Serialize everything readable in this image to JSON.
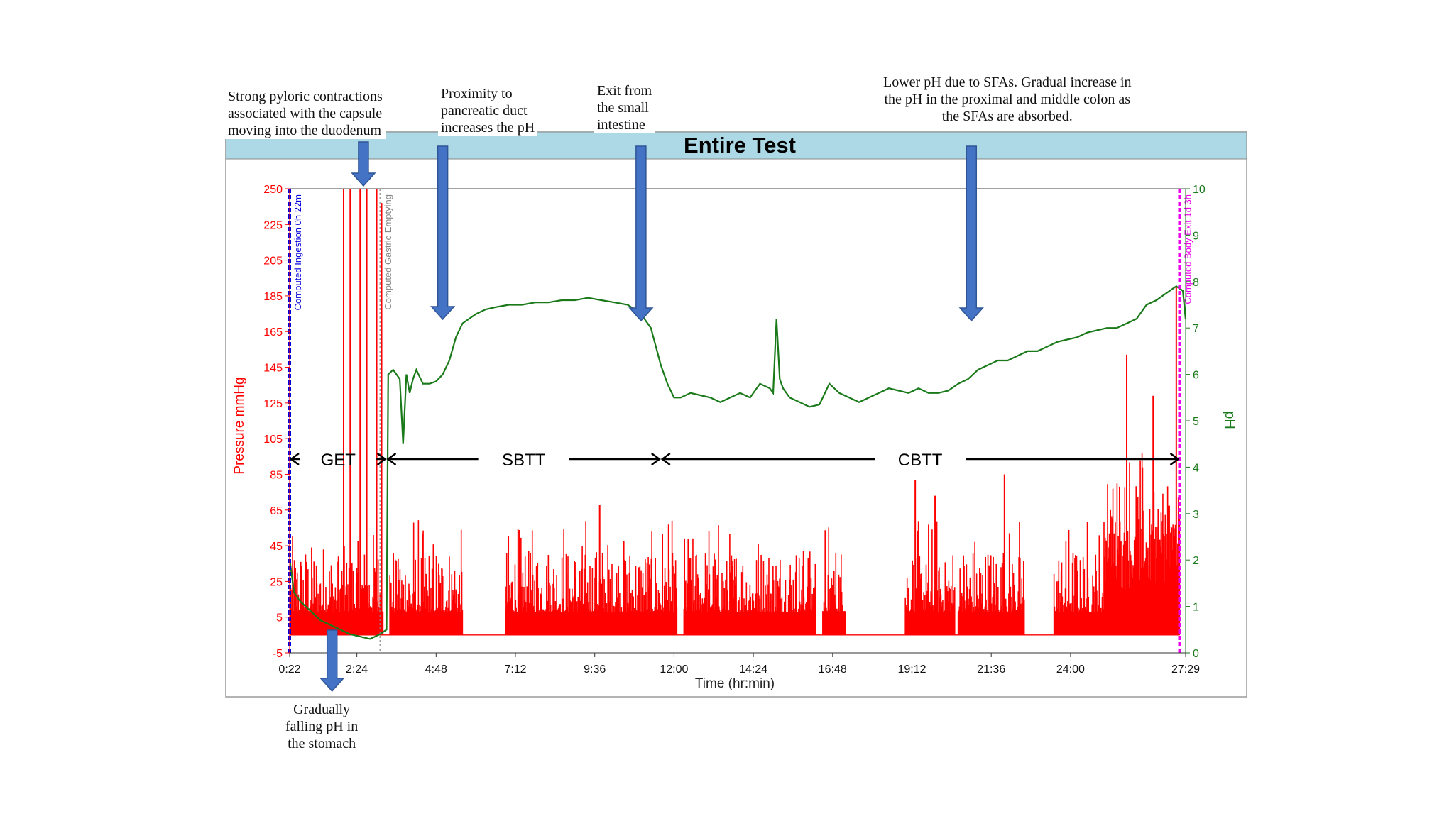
{
  "chart_data": {
    "type": "line",
    "title": "Entire Test",
    "xlabel": "Time (hr:min)",
    "ylabel_left": "Pressure mmHg",
    "ylabel_right": "pH",
    "x_ticks": [
      "0:22",
      "2:24",
      "4:48",
      "7:12",
      "9:36",
      "12:00",
      "14:24",
      "16:48",
      "19:12",
      "21:36",
      "24:00",
      "27:29"
    ],
    "x_tick_hours": [
      0.367,
      2.4,
      4.8,
      7.2,
      9.6,
      12.0,
      14.4,
      16.8,
      19.2,
      21.6,
      24.0,
      27.483
    ],
    "xlim_hours": [
      0.367,
      27.483
    ],
    "left_axis": {
      "ticks": [
        250,
        225,
        205,
        185,
        165,
        145,
        125,
        105,
        85,
        65,
        45,
        25,
        5,
        -5
      ],
      "tick_positions": [
        250,
        225,
        205,
        185,
        165,
        145,
        125,
        105,
        85,
        65,
        45,
        25,
        5,
        -5
      ],
      "ylim": [
        -5,
        250
      ]
    },
    "right_axis": {
      "ticks": [
        0,
        1,
        2,
        3,
        4,
        5,
        6,
        7,
        8,
        9,
        10
      ],
      "ylim": [
        0,
        10
      ]
    },
    "series": [
      {
        "name": "pH",
        "color": "#1a7a1a",
        "axis": "right",
        "x_hours": [
          0.37,
          0.5,
          0.7,
          1.0,
          1.3,
          1.6,
          1.9,
          2.2,
          2.5,
          2.8,
          3.1,
          3.3,
          3.35,
          3.5,
          3.7,
          3.8,
          3.9,
          4.0,
          4.1,
          4.2,
          4.4,
          4.6,
          4.8,
          5.0,
          5.2,
          5.4,
          5.6,
          5.8,
          6.0,
          6.3,
          6.6,
          7.0,
          7.4,
          7.8,
          8.2,
          8.6,
          9.0,
          9.4,
          9.8,
          10.2,
          10.6,
          11.0,
          11.3,
          11.6,
          11.8,
          12.0,
          12.2,
          12.5,
          12.8,
          13.1,
          13.4,
          13.7,
          14.0,
          14.3,
          14.6,
          14.9,
          15.0,
          15.1,
          15.2,
          15.3,
          15.5,
          15.8,
          16.1,
          16.4,
          16.7,
          17.0,
          17.3,
          17.6,
          17.9,
          18.2,
          18.5,
          18.8,
          19.1,
          19.4,
          19.7,
          20.0,
          20.3,
          20.6,
          20.9,
          21.2,
          21.5,
          21.8,
          22.1,
          22.4,
          22.7,
          23.0,
          23.3,
          23.6,
          23.9,
          24.2,
          24.5,
          24.8,
          25.1,
          25.4,
          25.7,
          26.0,
          26.3,
          26.6,
          26.8,
          27.0,
          27.2,
          27.4,
          27.48
        ],
        "values": [
          2.0,
          1.3,
          1.1,
          0.9,
          0.7,
          0.6,
          0.5,
          0.4,
          0.35,
          0.3,
          0.4,
          0.5,
          6.0,
          6.1,
          5.9,
          4.5,
          6.0,
          5.6,
          5.9,
          6.1,
          5.8,
          5.8,
          5.85,
          6.0,
          6.3,
          6.8,
          7.1,
          7.2,
          7.3,
          7.4,
          7.45,
          7.5,
          7.5,
          7.55,
          7.55,
          7.6,
          7.6,
          7.65,
          7.6,
          7.55,
          7.5,
          7.3,
          7.0,
          6.2,
          5.8,
          5.5,
          5.5,
          5.6,
          5.55,
          5.5,
          5.4,
          5.5,
          5.6,
          5.5,
          5.8,
          5.7,
          5.6,
          7.2,
          5.9,
          5.7,
          5.5,
          5.4,
          5.3,
          5.35,
          5.8,
          5.6,
          5.5,
          5.4,
          5.5,
          5.6,
          5.7,
          5.65,
          5.6,
          5.7,
          5.6,
          5.6,
          5.65,
          5.8,
          5.9,
          6.1,
          6.2,
          6.3,
          6.3,
          6.4,
          6.5,
          6.5,
          6.6,
          6.7,
          6.75,
          6.8,
          6.9,
          6.95,
          7.0,
          7.0,
          7.1,
          7.2,
          7.5,
          7.6,
          7.7,
          7.8,
          7.9,
          7.8,
          7.2
        ]
      },
      {
        "name": "Pressure",
        "color": "#ff0000",
        "axis": "left",
        "note": "dense spike train; envelope estimated from image",
        "spike_bursts_hours": [
          [
            0.4,
            3.2
          ],
          [
            3.4,
            5.6
          ],
          [
            6.9,
            12.1
          ],
          [
            12.3,
            14.6
          ],
          [
            14.6,
            16.3
          ],
          [
            16.5,
            17.2
          ],
          [
            19.0,
            20.5
          ],
          [
            20.6,
            22.6
          ],
          [
            23.5,
            27.3
          ]
        ],
        "tall_spikes": [
          {
            "x_hour": 2.0,
            "value": 250
          },
          {
            "x_hour": 2.2,
            "value": 250
          },
          {
            "x_hour": 2.5,
            "value": 250
          },
          {
            "x_hour": 2.7,
            "value": 250
          },
          {
            "x_hour": 3.0,
            "value": 250
          },
          {
            "x_hour": 3.15,
            "value": 240
          },
          {
            "x_hour": 9.75,
            "value": 68
          },
          {
            "x_hour": 19.3,
            "value": 82
          },
          {
            "x_hour": 19.9,
            "value": 73
          },
          {
            "x_hour": 22.0,
            "value": 85
          },
          {
            "x_hour": 25.7,
            "value": 152
          },
          {
            "x_hour": 26.5,
            "value": 129
          },
          {
            "x_hour": 27.2,
            "value": 190
          }
        ]
      }
    ],
    "vertical_markers": [
      {
        "label": "Computed Ingestion 0h 22m",
        "x_hour": 0.367,
        "color": "#0000dd"
      },
      {
        "label": "Computed Gastric Emptying",
        "x_hour": 3.1,
        "color": "#888888"
      },
      {
        "label": "Computed Body Exit 1d 3h",
        "x_hour": 27.3,
        "color": "#ee00ee"
      }
    ],
    "phase_spans": [
      {
        "label": "GET",
        "from_hour": 0.367,
        "to_hour": 3.3
      },
      {
        "label": "SBTT",
        "from_hour": 3.3,
        "to_hour": 11.6
      },
      {
        "label": "CBTT",
        "from_hour": 11.6,
        "to_hour": 27.3
      }
    ]
  },
  "annotations": [
    {
      "id": "pyloric",
      "text": "Strong pyloric contractions\nassociated with the capsule\nmoving into the duodenum",
      "points_to_hour": 2.6
    },
    {
      "id": "pancreatic",
      "text": "Proximity to\npancreatic duct\nincreases the pH",
      "points_to_hour": 5.0
    },
    {
      "id": "exit",
      "text": "Exit from\nthe small\nintestine",
      "points_to_hour": 11.0
    },
    {
      "id": "sfa",
      "text": "Lower pH due to SFAs. Gradual increase in\nthe pH in the proximal and middle colon as\nthe SFAs are absorbed.",
      "points_to_hour": 21.0
    },
    {
      "id": "stomach",
      "text": "Gradually\nfalling pH in\nthe stomach",
      "points_to_hour": 1.65
    }
  ],
  "colors": {
    "title_bar": "#add8e6",
    "arrow_fill": "#4472c4",
    "arrow_stroke": "#2f5597",
    "pressure": "#ff0000",
    "ph": "#1a7a1a"
  }
}
